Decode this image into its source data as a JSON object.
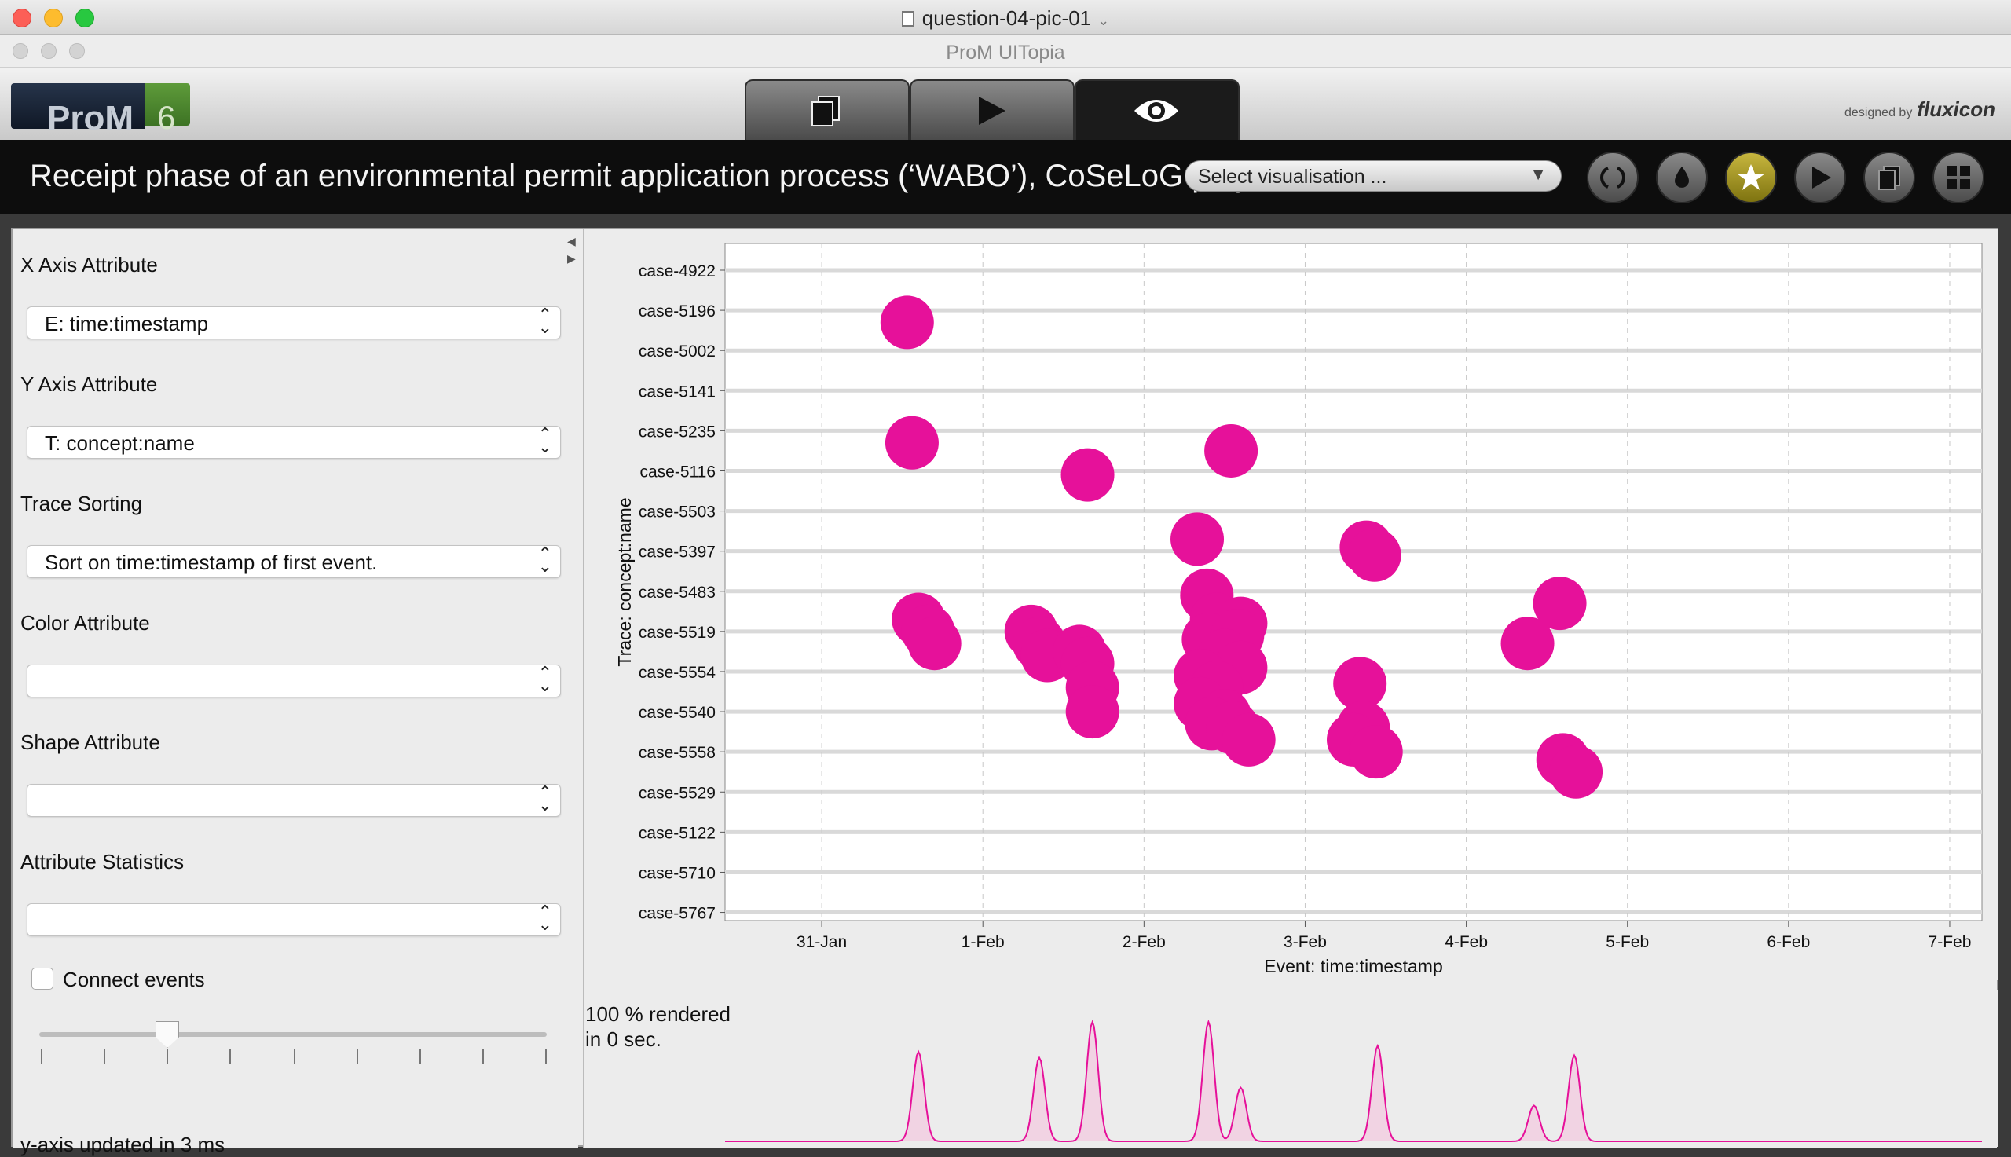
{
  "window": {
    "doc_title": "question-04-pic-01",
    "app_title": "ProM UITopia"
  },
  "header": {
    "logo_text": "ProM",
    "logo_version": "6",
    "designed_by": "designed by",
    "brand": "fluxicon",
    "tabs": [
      {
        "name": "workspace",
        "icon": "copy-icon"
      },
      {
        "name": "actions",
        "icon": "play-icon"
      },
      {
        "name": "view",
        "icon": "eye-icon",
        "active": true
      }
    ]
  },
  "toolbar": {
    "view_title": "Receipt phase of an environmental permit application process (‘WABO’), CoSeLoG project",
    "vis_select": "Select visualisation ...",
    "buttons": [
      "refresh-icon",
      "drop-icon",
      "star-icon",
      "play-icon",
      "copy-icon",
      "grid-icon"
    ]
  },
  "left": {
    "x_label": "X Axis Attribute",
    "x_value": "E: time:timestamp",
    "y_label": "Y Axis Attribute",
    "y_value": "T: concept:name",
    "sort_label": "Trace Sorting",
    "sort_value": "Sort on time:timestamp of first event.",
    "color_label": "Color Attribute",
    "color_value": "",
    "shape_label": "Shape Attribute",
    "shape_value": "",
    "stats_label": "Attribute Statistics",
    "stats_value": "",
    "connect_label": "Connect events",
    "connect_checked": false,
    "y_status": "y-axis updated in 3 ms"
  },
  "render": {
    "line1": "100 % rendered",
    "line2": "in 0 sec."
  },
  "chart_data": {
    "type": "scatter",
    "xlabel": "Event: time:timestamp",
    "ylabel": "Trace: concept:name",
    "x_ticks": [
      "31-Jan",
      "1-Feb",
      "2-Feb",
      "3-Feb",
      "4-Feb",
      "5-Feb",
      "6-Feb",
      "7-Feb"
    ],
    "x_range_days": [
      -0.6,
      7.2
    ],
    "y_categories": [
      "case-4922",
      "case-5196",
      "case-5002",
      "case-5141",
      "case-5235",
      "case-5116",
      "case-5503",
      "case-5397",
      "case-5483",
      "case-5519",
      "case-5554",
      "case-5540",
      "case-5558",
      "case-5529",
      "case-5122",
      "case-5710",
      "case-5767"
    ],
    "color": "#e6119a",
    "grid": true,
    "points": [
      {
        "x": 0.53,
        "y": 1.3
      },
      {
        "x": 0.56,
        "y": 4.3
      },
      {
        "x": 1.65,
        "y": 5.1
      },
      {
        "x": 2.54,
        "y": 4.5
      },
      {
        "x": 2.33,
        "y": 6.7
      },
      {
        "x": 3.38,
        "y": 6.9
      },
      {
        "x": 3.43,
        "y": 7.1
      },
      {
        "x": 0.6,
        "y": 8.7
      },
      {
        "x": 0.66,
        "y": 9.0
      },
      {
        "x": 0.7,
        "y": 9.3
      },
      {
        "x": 1.3,
        "y": 9.0
      },
      {
        "x": 1.35,
        "y": 9.3
      },
      {
        "x": 1.4,
        "y": 9.6
      },
      {
        "x": 1.6,
        "y": 9.5
      },
      {
        "x": 1.65,
        "y": 9.8
      },
      {
        "x": 1.68,
        "y": 10.4
      },
      {
        "x": 1.68,
        "y": 11.0
      },
      {
        "x": 2.39,
        "y": 8.1
      },
      {
        "x": 2.45,
        "y": 8.7
      },
      {
        "x": 2.6,
        "y": 8.8
      },
      {
        "x": 2.4,
        "y": 9.2
      },
      {
        "x": 2.58,
        "y": 9.1
      },
      {
        "x": 2.5,
        "y": 9.6
      },
      {
        "x": 2.6,
        "y": 9.9
      },
      {
        "x": 2.35,
        "y": 10.1
      },
      {
        "x": 2.45,
        "y": 10.4
      },
      {
        "x": 2.35,
        "y": 10.8
      },
      {
        "x": 2.5,
        "y": 11.1
      },
      {
        "x": 2.42,
        "y": 11.3
      },
      {
        "x": 2.55,
        "y": 11.4
      },
      {
        "x": 2.65,
        "y": 11.7
      },
      {
        "x": 3.34,
        "y": 10.3
      },
      {
        "x": 3.36,
        "y": 11.4
      },
      {
        "x": 3.3,
        "y": 11.7
      },
      {
        "x": 3.44,
        "y": 12.0
      },
      {
        "x": 4.58,
        "y": 8.3
      },
      {
        "x": 4.38,
        "y": 9.3
      },
      {
        "x": 4.6,
        "y": 12.2
      },
      {
        "x": 4.68,
        "y": 12.5
      }
    ],
    "histogram": {
      "peaks": [
        [
          0.6,
          0.75
        ],
        [
          1.35,
          0.7
        ],
        [
          1.68,
          1.0
        ],
        [
          2.4,
          1.0
        ],
        [
          2.6,
          0.45
        ],
        [
          3.45,
          0.8
        ],
        [
          4.42,
          0.3
        ],
        [
          4.67,
          0.72
        ]
      ]
    }
  }
}
